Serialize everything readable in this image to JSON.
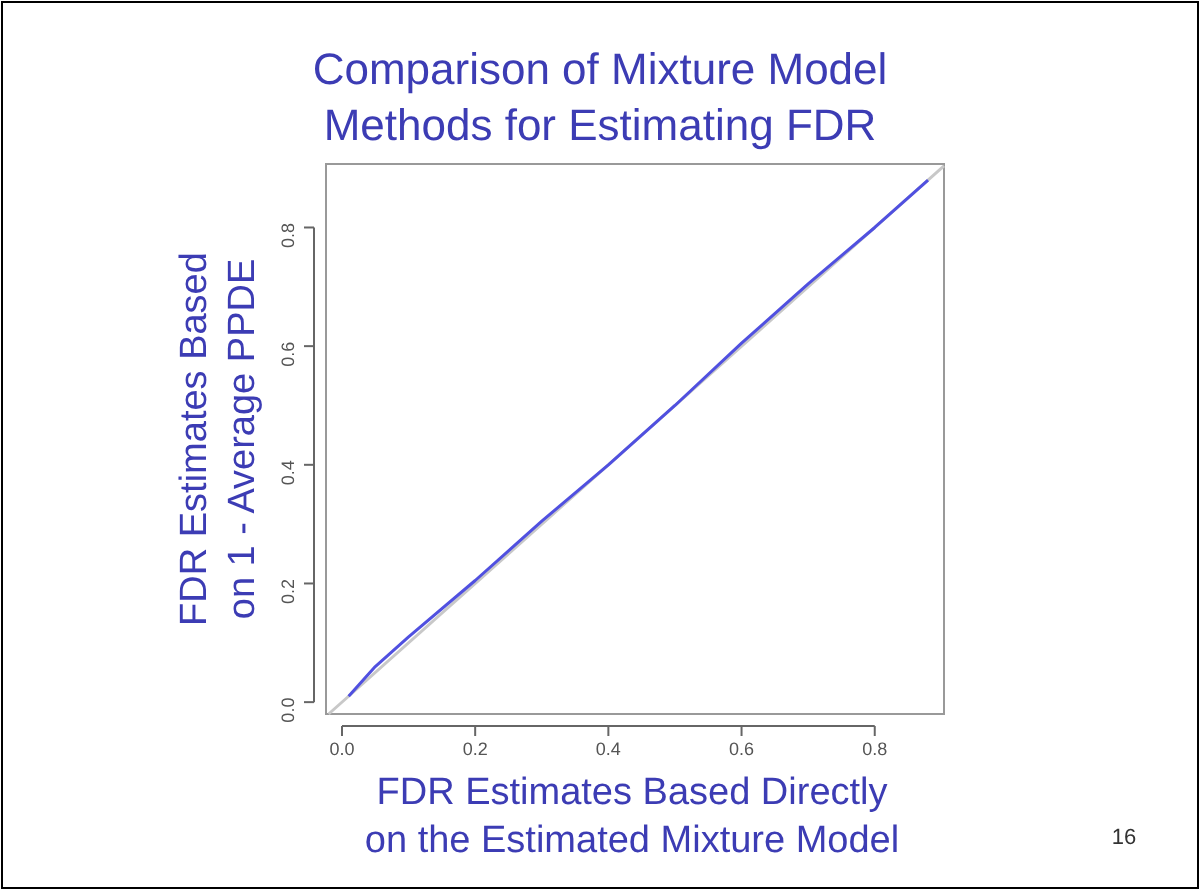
{
  "chart_data": {
    "type": "line",
    "title": "Comparison of Mixture Model\nMethods for Estimating FDR",
    "xlabel": "FDR Estimates Based Directly\non the Estimated Mixture Model",
    "ylabel": "FDR Estimates Based\non 1 - Average PPDE",
    "x": [
      0.01,
      0.05,
      0.1,
      0.2,
      0.3,
      0.4,
      0.5,
      0.6,
      0.7,
      0.8,
      0.88
    ],
    "series": [
      {
        "color": "#c8c8c8",
        "x": [
          -0.02,
          0.904
        ],
        "values": [
          -0.02,
          0.904
        ]
      },
      {
        "color": "#5050e0",
        "values": [
          0.01,
          0.06,
          0.11,
          0.205,
          0.305,
          0.4,
          0.5,
          0.605,
          0.705,
          0.8,
          0.88
        ]
      }
    ],
    "xlim": [
      -0.024,
      0.904
    ],
    "ylim": [
      -0.02,
      0.907
    ],
    "xticks": [
      {
        "value": 0,
        "label": "0.0"
      },
      0.2,
      0.4,
      0.6,
      0.8
    ],
    "yticks": [
      {
        "value": 0,
        "label": "0.0"
      },
      0.2,
      0.4,
      0.6,
      0.8
    ],
    "annotations": [
      "16"
    ],
    "grid": false
  }
}
